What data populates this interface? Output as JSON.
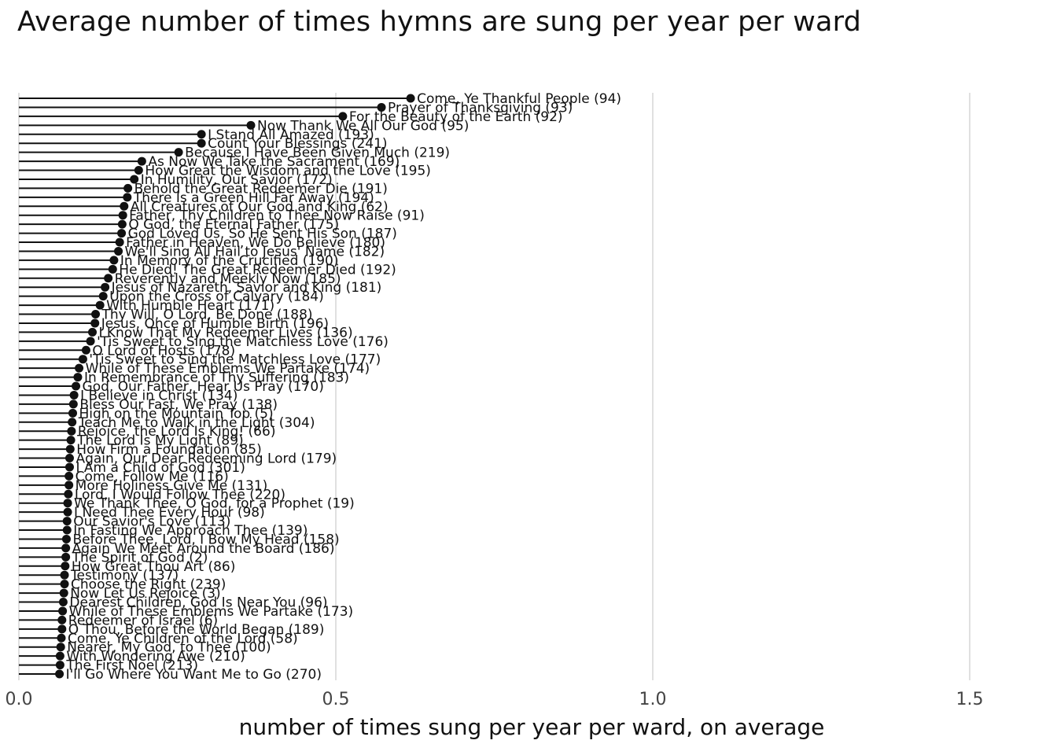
{
  "chart_data": {
    "type": "scatter",
    "title": "Average number of times hymns are sung per year per ward",
    "xlabel": "number of times sung per year per ward, on average",
    "ylabel": "",
    "xlim": [
      0,
      1.5
    ],
    "x_ticks": [
      0,
      0.5,
      1.0,
      1.5
    ],
    "x_tick_labels": [
      "0.0",
      "0.5",
      "1.0",
      "1.5"
    ],
    "grid": "vertical",
    "style": "lollipop",
    "colors": {
      "mark": "#111111",
      "grid": "#e0e0e0"
    },
    "points": [
      {
        "label": "Come, Ye Thankful People (94)",
        "value": 0.618
      },
      {
        "label": "Prayer of Thanksgiving (93)",
        "value": 0.572
      },
      {
        "label": "For the Beauty of the Earth (92)",
        "value": 0.511
      },
      {
        "label": "Now Thank We All Our God (95)",
        "value": 0.366
      },
      {
        "label": "I Stand All Amazed (193)",
        "value": 0.288
      },
      {
        "label": "Count Your Blessings (241)",
        "value": 0.288
      },
      {
        "label": "Because I Have Been Given Much (219)",
        "value": 0.252
      },
      {
        "label": "As Now We Take the Sacrament (169)",
        "value": 0.194
      },
      {
        "label": "How Great the Wisdom and the Love (195)",
        "value": 0.189
      },
      {
        "label": "In Humility, Our Savior (172)",
        "value": 0.182
      },
      {
        "label": "Behold the Great Redeemer Die (191)",
        "value": 0.172
      },
      {
        "label": "There Is a Green Hill Far Away (194)",
        "value": 0.171
      },
      {
        "label": "All Creatures of Our God and King (62)",
        "value": 0.166
      },
      {
        "label": "Father, Thy Children to Thee Now Raise (91)",
        "value": 0.164
      },
      {
        "label": "O God, the Eternal Father (175)",
        "value": 0.163
      },
      {
        "label": "God Loved Us, So He Sent His Son (187)",
        "value": 0.162
      },
      {
        "label": "Father in Heaven, We Do Believe (180)",
        "value": 0.159
      },
      {
        "label": "We'll Sing All Hail to Jesus' Name (182)",
        "value": 0.157
      },
      {
        "label": "In Memory of the Crucified (190)",
        "value": 0.15
      },
      {
        "label": "He Died! The Great Redeemer Died (192)",
        "value": 0.148
      },
      {
        "label": "Reverently and Meekly Now (185)",
        "value": 0.141
      },
      {
        "label": "Jesus of Nazareth, Savior and King (181)",
        "value": 0.136
      },
      {
        "label": "Upon the Cross of Calvary (184)",
        "value": 0.133
      },
      {
        "label": "With Humble Heart (171)",
        "value": 0.128
      },
      {
        "label": "Thy Will, O Lord, Be Done (188)",
        "value": 0.121
      },
      {
        "label": "Jesus, Once of Humble Birth (196)",
        "value": 0.12
      },
      {
        "label": "I Know That My Redeemer Lives (136)",
        "value": 0.116
      },
      {
        "label": "'Tis Sweet to Sing the Matchless Love (176)",
        "value": 0.113
      },
      {
        "label": "O Lord of Hosts (178)",
        "value": 0.106
      },
      {
        "label": "'Tis Sweet to Sing the Matchless Love (177)",
        "value": 0.101
      },
      {
        "label": "While of These Emblems We Partake (174)",
        "value": 0.095
      },
      {
        "label": "In Remembrance of Thy Suffering (183)",
        "value": 0.093
      },
      {
        "label": "God, Our Father, Hear Us Pray (170)",
        "value": 0.09
      },
      {
        "label": "I Believe in Christ (134)",
        "value": 0.087
      },
      {
        "label": "Bless Our Fast, We Pray (138)",
        "value": 0.086
      },
      {
        "label": "High on the Mountain Top (5)",
        "value": 0.085
      },
      {
        "label": "Teach Me to Walk in the Light (304)",
        "value": 0.084
      },
      {
        "label": "Rejoice, the Lord Is King! (66)",
        "value": 0.083
      },
      {
        "label": "The Lord Is My Light (89)",
        "value": 0.082
      },
      {
        "label": "How Firm a Foundation (85)",
        "value": 0.081
      },
      {
        "label": "Again, Our Dear Redeeming Lord (179)",
        "value": 0.08
      },
      {
        "label": "I Am a Child of God (301)",
        "value": 0.08
      },
      {
        "label": "Come, Follow Me (116)",
        "value": 0.079
      },
      {
        "label": "More Holiness Give Me (131)",
        "value": 0.079
      },
      {
        "label": "Lord, I Would Follow Thee (220)",
        "value": 0.078
      },
      {
        "label": "We Thank Thee, O God, for a Prophet (19)",
        "value": 0.077
      },
      {
        "label": "I Need Thee Every Hour (98)",
        "value": 0.077
      },
      {
        "label": "Our Savior's Love (113)",
        "value": 0.076
      },
      {
        "label": "In Fasting We Approach Thee (139)",
        "value": 0.076
      },
      {
        "label": "Before Thee, Lord, I Bow My Head (158)",
        "value": 0.075
      },
      {
        "label": "Again We Meet Around the Board (186)",
        "value": 0.074
      },
      {
        "label": "The Spirit of God (2)",
        "value": 0.074
      },
      {
        "label": "How Great Thou Art (86)",
        "value": 0.073
      },
      {
        "label": "Testimony (137)",
        "value": 0.072
      },
      {
        "label": "Choose the Right (239)",
        "value": 0.072
      },
      {
        "label": "Now Let Us Rejoice (3)",
        "value": 0.071
      },
      {
        "label": "Dearest Children, God Is Near You (96)",
        "value": 0.07
      },
      {
        "label": "While of These Emblems We Partake (173)",
        "value": 0.069
      },
      {
        "label": "Redeemer of Israel (6)",
        "value": 0.068
      },
      {
        "label": "O Thou, Before the World Began (189)",
        "value": 0.068
      },
      {
        "label": "Come, Ye Children of the Lord (58)",
        "value": 0.067
      },
      {
        "label": "Nearer, My God, to Thee (100)",
        "value": 0.066
      },
      {
        "label": "With Wondering Awe (210)",
        "value": 0.065
      },
      {
        "label": "The First Noel (213)",
        "value": 0.065
      },
      {
        "label": "I'll Go Where You Want Me to Go (270)",
        "value": 0.064
      }
    ]
  }
}
